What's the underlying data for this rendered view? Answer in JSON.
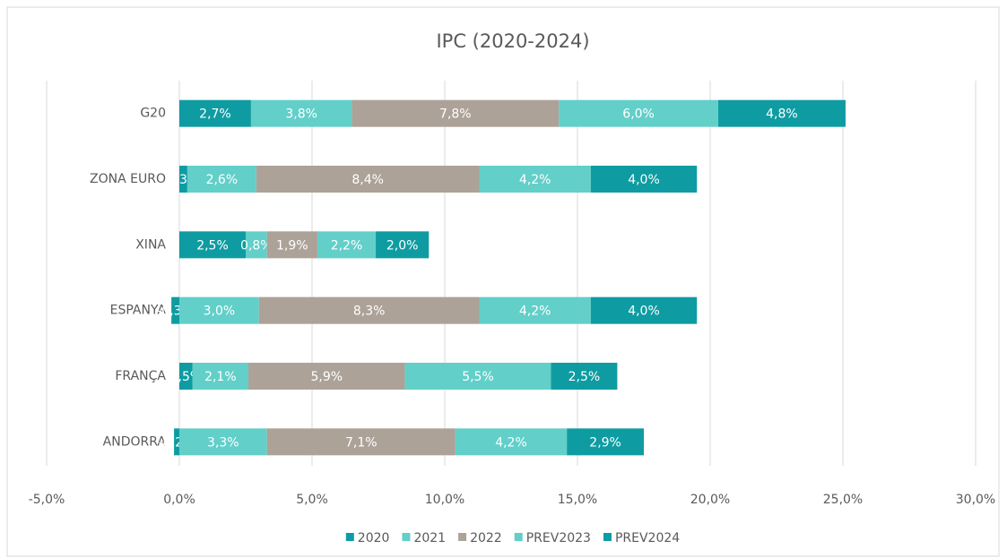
{
  "chart_data": {
    "type": "stacked_barh",
    "title": "IPC (2020-2024)",
    "categories": [
      "G20",
      "ZONA EURO",
      "XINA",
      "ESPANYA",
      "FRANÇA",
      "ANDORRA"
    ],
    "series": [
      {
        "name": "2020",
        "color": "#0e9ca2",
        "values": [
          2.7,
          0.3,
          2.5,
          -0.3,
          0.5,
          -0.2
        ],
        "value_labels": [
          "2,7%",
          "0,3%",
          "2,5%",
          "-0,3%",
          "0,5%",
          "-0,2%"
        ]
      },
      {
        "name": "2021",
        "color": "#62cfc9",
        "values": [
          3.8,
          2.6,
          0.8,
          3.0,
          2.1,
          3.3
        ],
        "value_labels": [
          "3,8%",
          "2,6%",
          "0,8%",
          "3,0%",
          "2,1%",
          "3,3%"
        ]
      },
      {
        "name": "2022",
        "color": "#aca298",
        "values": [
          7.8,
          8.4,
          1.9,
          8.3,
          5.9,
          7.1
        ],
        "value_labels": [
          "7,8%",
          "8,4%",
          "1,9%",
          "8,3%",
          "5,9%",
          "7,1%"
        ]
      },
      {
        "name": "PREV2023",
        "color": "#62cfc9",
        "values": [
          6.0,
          4.2,
          2.2,
          4.2,
          5.5,
          4.2
        ],
        "value_labels": [
          "6,0%",
          "4,2%",
          "2,2%",
          "4,2%",
          "5,5%",
          "4,2%"
        ]
      },
      {
        "name": "PREV2024",
        "color": "#0e9ca2",
        "values": [
          4.8,
          4.0,
          2.0,
          4.0,
          2.5,
          2.9
        ],
        "value_labels": [
          "4,8%",
          "4,0%",
          "2,0%",
          "4,0%",
          "2,5%",
          "2,9%"
        ]
      }
    ],
    "xlim": [
      -5,
      30
    ],
    "xticks": [
      {
        "value": -5,
        "label": "-5,0%"
      },
      {
        "value": 0,
        "label": "0,0%"
      },
      {
        "value": 5,
        "label": "5,0%"
      },
      {
        "value": 10,
        "label": "10,0%"
      },
      {
        "value": 15,
        "label": "15,0%"
      },
      {
        "value": 20,
        "label": "20,0%"
      },
      {
        "value": 25,
        "label": "25,0%"
      },
      {
        "value": 30,
        "label": "30,0%"
      }
    ],
    "grid": true,
    "legend": "bottom"
  }
}
